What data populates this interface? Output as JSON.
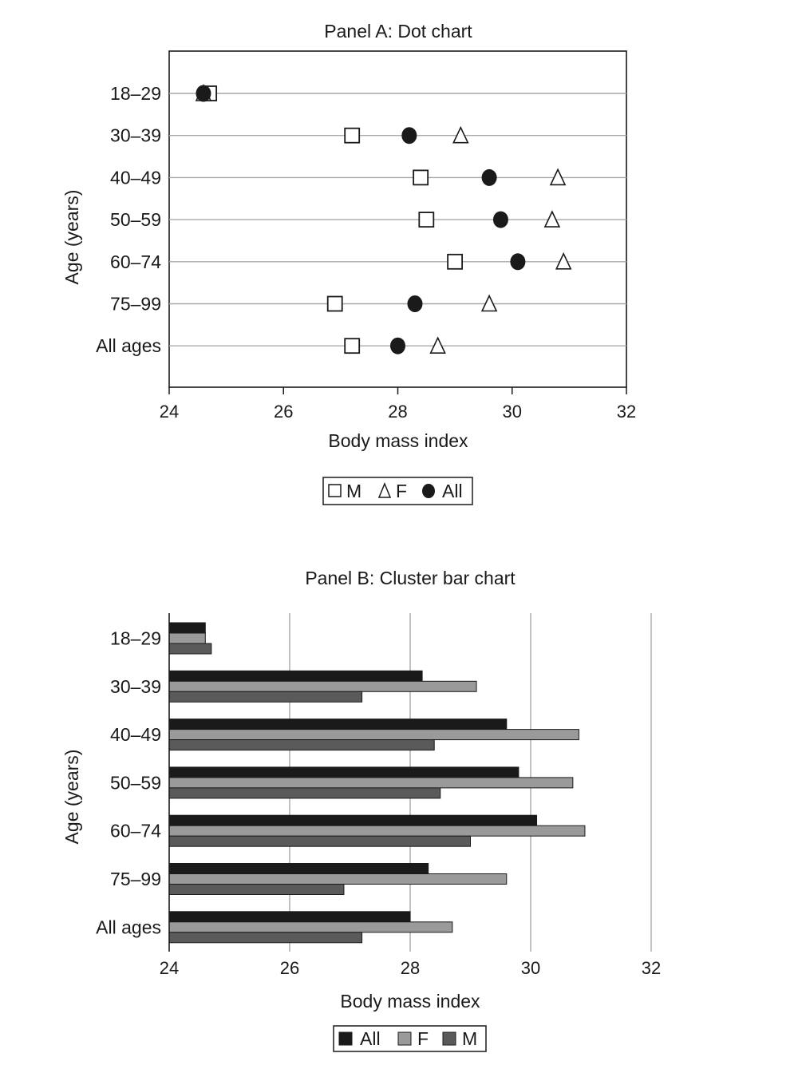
{
  "chart_data": [
    {
      "type": "scatter",
      "title": "Panel A: Dot chart",
      "xlabel": "Body mass index",
      "ylabel": "Age (years)",
      "xlim": [
        24,
        32
      ],
      "x_ticks": [
        24,
        26,
        28,
        30,
        32
      ],
      "categories": [
        "18–29",
        "30–39",
        "40–49",
        "50–59",
        "60–74",
        "75–99",
        "All ages"
      ],
      "series": [
        {
          "name": "M",
          "marker": "square",
          "values": [
            24.7,
            27.2,
            28.4,
            28.5,
            29.0,
            26.9,
            27.2
          ]
        },
        {
          "name": "F",
          "marker": "triangle",
          "values": [
            24.6,
            29.1,
            30.8,
            30.7,
            30.9,
            29.6,
            28.7
          ]
        },
        {
          "name": "All",
          "marker": "circle",
          "values": [
            24.6,
            28.2,
            29.6,
            29.8,
            30.1,
            28.3,
            28.0
          ]
        }
      ],
      "grid": "horizontal",
      "legend": "bottom-center"
    },
    {
      "type": "bar",
      "orientation": "horizontal",
      "title": "Panel B: Cluster bar chart",
      "xlabel": "Body mass index",
      "ylabel": "Age (years)",
      "xlim": [
        24,
        32
      ],
      "x_ticks": [
        24,
        26,
        28,
        30,
        32
      ],
      "categories": [
        "18–29",
        "30–39",
        "40–49",
        "50–59",
        "60–74",
        "75–99",
        "All ages"
      ],
      "series": [
        {
          "name": "All",
          "color": "#1a1a1a",
          "values": [
            24.6,
            28.2,
            29.6,
            29.8,
            30.1,
            28.3,
            28.0
          ]
        },
        {
          "name": "F",
          "color": "#9a9a9a",
          "values": [
            24.6,
            29.1,
            30.8,
            30.7,
            30.9,
            29.6,
            28.7
          ]
        },
        {
          "name": "M",
          "color": "#5a5a5a",
          "values": [
            24.7,
            27.2,
            28.4,
            28.5,
            29.0,
            26.9,
            27.2
          ]
        }
      ],
      "grid": "vertical",
      "legend": "bottom-center"
    }
  ]
}
